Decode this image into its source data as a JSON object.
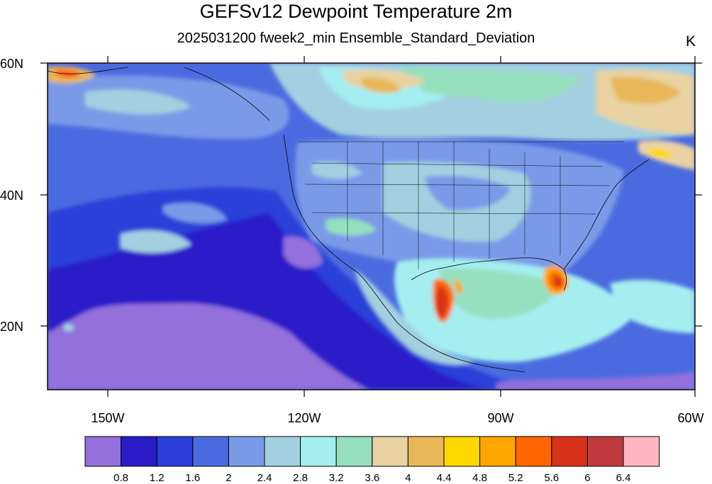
{
  "title": "GEFSv12 Dewpoint Temperature 2m",
  "subtitle": "2025031200 fweek2_min Ensemble_Standard_Deviation",
  "units": "K",
  "axes": {
    "lat_labels": [
      "60N",
      "40N",
      "20N"
    ],
    "lon_labels": [
      "150W",
      "120W",
      "90W",
      "60W"
    ]
  },
  "colorbar": {
    "colors": [
      "#9370DB",
      "#2A1BC8",
      "#2A3FD8",
      "#4A6BE0",
      "#7A9AE8",
      "#A2D0E0",
      "#A4EEF0",
      "#96E0BE",
      "#E8D2A2",
      "#E8B858",
      "#FFD700",
      "#FFA500",
      "#FF6600",
      "#D83218",
      "#C03A40",
      "#FFB6C1"
    ],
    "levels": [
      "0.8",
      "1.2",
      "1.6",
      "2",
      "2.4",
      "2.8",
      "3.2",
      "3.6",
      "4",
      "4.4",
      "4.8",
      "5.2",
      "5.6",
      "6",
      "6.4"
    ]
  }
}
